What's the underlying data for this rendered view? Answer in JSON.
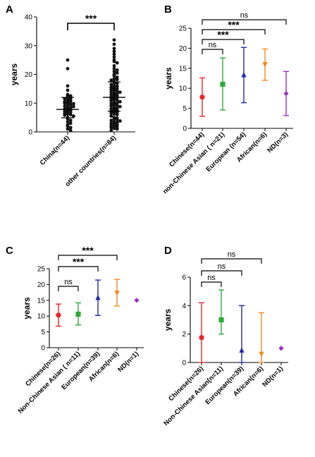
{
  "chart_data": [
    {
      "panel": "A",
      "type": "scatter",
      "ylabel": "years",
      "ylim": [
        0,
        40
      ],
      "yticks": [
        0,
        10,
        20,
        30,
        40
      ],
      "categories": [
        "China(n=44)",
        "other countries(n=84)"
      ],
      "summary": [
        {
          "category": "China(n=44)",
          "mean": 7.8,
          "lower": 4.9,
          "upper": 12.0
        },
        {
          "category": "other countries(n=84)",
          "mean": 12.0,
          "lower": 7.2,
          "upper": 17.4
        }
      ],
      "points": [
        {
          "category": "China(n=44)",
          "values": [
            25,
            22,
            16,
            14.5,
            13,
            12.5,
            12.5,
            12,
            11.5,
            11.5,
            11,
            10.8,
            10.5,
            10.3,
            10,
            10,
            9.8,
            9.5,
            9.2,
            9,
            8.8,
            8.5,
            8.3,
            8,
            7.8,
            7.5,
            7.2,
            7,
            6.8,
            6.5,
            6.2,
            6,
            5.8,
            5.5,
            5,
            4.5,
            4,
            3.5,
            3,
            2.5,
            2,
            1.5,
            1,
            0.5
          ]
        },
        {
          "category": "other countries(n=84)",
          "values": [
            32,
            30.5,
            29,
            28,
            27,
            26,
            25,
            24.5,
            24,
            23,
            22,
            21.5,
            21,
            20.5,
            20,
            19.5,
            19,
            18.5,
            18.2,
            18,
            17.5,
            17,
            16.8,
            16.5,
            16,
            15.8,
            15.5,
            15.2,
            15,
            14.8,
            14.5,
            14.2,
            14,
            13.8,
            13.5,
            13.2,
            13,
            12.8,
            12.5,
            12.2,
            12,
            11.8,
            11.5,
            11.2,
            11,
            10.8,
            10.5,
            10.2,
            10,
            9.8,
            9.5,
            9.2,
            9,
            8.8,
            8.5,
            8.2,
            8,
            7.8,
            7.5,
            7.2,
            7,
            6.8,
            6.5,
            6.2,
            6,
            5.5,
            5,
            4.8,
            4.5,
            4.2,
            4,
            3.8,
            3.5,
            3.2,
            3,
            2.8,
            2.5,
            2.2,
            2,
            1.8,
            1.5,
            1.2,
            1,
            0.5
          ]
        }
      ],
      "annotations": [
        {
          "from": 0,
          "to": 1,
          "label": "***"
        }
      ]
    },
    {
      "panel": "B",
      "type": "errorbar",
      "ylabel": "years",
      "ylim": [
        0,
        25
      ],
      "yticks": [
        0,
        5,
        10,
        15,
        20,
        25
      ],
      "categories": [
        "Chinese(n=44)",
        "non-Chinese Asian ( n=21)",
        "European (n=54)",
        "African(n=6)",
        "ND(n=3)"
      ],
      "series": [
        {
          "category": "Chinese(n=44)",
          "mean": 7.8,
          "lower": 3.0,
          "upper": 12.6,
          "marker": "circle",
          "color": "#e8262a"
        },
        {
          "category": "non-Chinese Asian ( n=21)",
          "mean": 11.0,
          "lower": 4.6,
          "upper": 17.6,
          "marker": "square",
          "color": "#2eab3a"
        },
        {
          "category": "European (n=54)",
          "mean": 13.3,
          "lower": 6.4,
          "upper": 20.2,
          "marker": "triangle-up",
          "color": "#2228b0"
        },
        {
          "category": "African(n=6)",
          "mean": 16.0,
          "lower": 12.0,
          "upper": 19.8,
          "marker": "triangle-down",
          "color": "#f28a1c"
        },
        {
          "category": "ND(n=3)",
          "mean": 8.7,
          "lower": 3.2,
          "upper": 14.2,
          "marker": "diamond",
          "color": "#9b2fc8"
        }
      ],
      "annotations": [
        {
          "from": 0,
          "to": 1,
          "label": "ns"
        },
        {
          "from": 0,
          "to": 2,
          "label": "***"
        },
        {
          "from": 0,
          "to": 3,
          "label": "***"
        },
        {
          "from": 0,
          "to": 4,
          "label": "ns"
        }
      ]
    },
    {
      "panel": "C",
      "type": "errorbar",
      "ylabel": "years",
      "ylim": [
        0,
        25
      ],
      "yticks": [
        0,
        5,
        10,
        15,
        20,
        25
      ],
      "categories": [
        "Chinese(n=26)",
        "Non-Chinese Asian ( n=11)",
        "European(n=39)",
        "African(n=6)",
        "ND(n=1)"
      ],
      "series": [
        {
          "category": "Chinese(n=26)",
          "mean": 10.3,
          "lower": 6.8,
          "upper": 13.8,
          "marker": "circle",
          "color": "#e8262a"
        },
        {
          "category": "Non-Chinese Asian ( n=11)",
          "mean": 10.6,
          "lower": 7.2,
          "upper": 14.2,
          "marker": "square",
          "color": "#2eab3a"
        },
        {
          "category": "European(n=39)",
          "mean": 15.8,
          "lower": 10.2,
          "upper": 21.4,
          "marker": "triangle-up",
          "color": "#2228b0"
        },
        {
          "category": "African(n=6)",
          "mean": 17.4,
          "lower": 13.2,
          "upper": 21.6,
          "marker": "triangle-down",
          "color": "#f28a1c"
        },
        {
          "category": "ND(n=1)",
          "mean": 15.0,
          "marker": "diamond",
          "color": "#9b2fc8"
        }
      ],
      "annotations": [
        {
          "from": 0,
          "to": 1,
          "label": "ns"
        },
        {
          "from": 0,
          "to": 2,
          "label": "***"
        },
        {
          "from": 0,
          "to": 3,
          "label": "***"
        }
      ]
    },
    {
      "panel": "D",
      "type": "errorbar",
      "ylabel": "years",
      "ylim": [
        0,
        6
      ],
      "yticks": [
        0,
        2,
        4,
        6
      ],
      "categories": [
        "Chinese(n=26)",
        "Non-Chinese Asian(n=11)",
        "European(n=39)",
        "African(n=6)",
        "ND(n=1)"
      ],
      "series": [
        {
          "category": "Chinese(n=26)",
          "mean": 1.75,
          "lower": 0.0,
          "upper": 4.2,
          "marker": "circle",
          "color": "#e8262a"
        },
        {
          "category": "Non-Chinese Asian(n=11)",
          "mean": 3.0,
          "lower": 2.0,
          "upper": 5.1,
          "marker": "square",
          "color": "#2eab3a"
        },
        {
          "category": "European(n=39)",
          "mean": 0.85,
          "lower": 0.0,
          "upper": 4.0,
          "marker": "triangle-up",
          "color": "#2228b0"
        },
        {
          "category": "African(n=6)",
          "mean": 0.6,
          "lower": 0.0,
          "upper": 3.5,
          "marker": "triangle-down",
          "color": "#f28a1c"
        },
        {
          "category": "ND(n=1)",
          "mean": 1.0,
          "marker": "diamond",
          "color": "#9b2fc8"
        }
      ],
      "annotations": [
        {
          "from": 0,
          "to": 1,
          "label": "ns"
        },
        {
          "from": 0,
          "to": 2,
          "label": "ns"
        },
        {
          "from": 0,
          "to": 3,
          "label": "ns"
        }
      ]
    }
  ]
}
